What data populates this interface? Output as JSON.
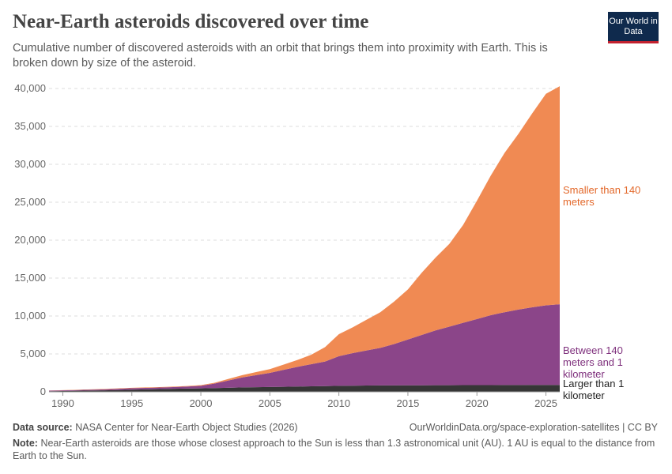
{
  "title": "Near-Earth asteroids discovered over time",
  "subtitle": "Cumulative number of discovered asteroids with an orbit that brings them into proximity with Earth. This is broken down by size of the asteroid.",
  "logo": "Our World in Data",
  "source_label": "Data source:",
  "source": "NASA Center for Near-Earth Object Studies (2026)",
  "url": "OurWorldinData.org/space-exploration-satellites | CC BY",
  "note_label": "Note:",
  "note": "Near-Earth asteroids are those whose closest approach to the Sun is less than 1.3 astronomical unit (AU). 1 AU is equal to the distance from Earth to the Sun.",
  "chart_data": {
    "type": "stacked-area",
    "x": [
      1989,
      1990,
      1991,
      1992,
      1993,
      1994,
      1995,
      1996,
      1997,
      1998,
      1999,
      2000,
      2001,
      2002,
      2003,
      2004,
      2005,
      2006,
      2007,
      2008,
      2009,
      2010,
      2011,
      2012,
      2013,
      2014,
      2015,
      2016,
      2017,
      2018,
      2019,
      2020,
      2021,
      2022,
      2023,
      2024,
      2025,
      2026
    ],
    "series": [
      {
        "name": "Larger than 1 kilometer",
        "color": "#363636",
        "label_color": "#222222",
        "values": [
          80,
          110,
          140,
          170,
          200,
          240,
          280,
          320,
          360,
          400,
          430,
          460,
          500,
          540,
          580,
          610,
          640,
          670,
          700,
          730,
          760,
          790,
          810,
          830,
          840,
          850,
          860,
          865,
          870,
          875,
          880,
          885,
          890,
          895,
          900,
          905,
          910,
          915
        ]
      },
      {
        "name": "Between 140 meters and 1 kilometer",
        "color": "#8b4589",
        "label_color": "#7e2f7c",
        "values": [
          70,
          80,
          90,
          110,
          130,
          160,
          200,
          200,
          210,
          220,
          270,
          340,
          600,
          960,
          1320,
          1590,
          1860,
          2230,
          2600,
          2920,
          3240,
          3910,
          4290,
          4620,
          4960,
          5450,
          6040,
          6635,
          7230,
          7725,
          8220,
          8715,
          9210,
          9605,
          9950,
          10245,
          10490,
          10635
        ]
      },
      {
        "name": "Smaller than 140 meters",
        "color": "#f08a53",
        "label_color": "#e3682a",
        "values": [
          20,
          30,
          40,
          40,
          50,
          50,
          50,
          60,
          60,
          70,
          70,
          80,
          100,
          200,
          300,
          400,
          500,
          700,
          900,
          1250,
          1900,
          2900,
          3400,
          4050,
          4700,
          5600,
          6600,
          8200,
          9600,
          10900,
          12900,
          15600,
          18400,
          21000,
          23150,
          25550,
          27900,
          28750
        ]
      }
    ],
    "xlim": [
      1989,
      2026
    ],
    "xticks": [
      1990,
      1995,
      2000,
      2005,
      2010,
      2015,
      2020,
      2025
    ],
    "ylim": [
      0,
      40000
    ],
    "yticks": [
      0,
      {
        "value": 5000,
        "label": "5,000"
      },
      {
        "value": 10000,
        "label": "10,000"
      },
      {
        "value": 15000,
        "label": "15,000"
      },
      {
        "value": 20000,
        "label": "20,000"
      },
      {
        "value": 25000,
        "label": "25,000"
      },
      {
        "value": 30000,
        "label": "30,000"
      },
      {
        "value": 35000,
        "label": "35,000"
      },
      {
        "value": 40000,
        "label": "40,000"
      }
    ],
    "grid": true
  }
}
